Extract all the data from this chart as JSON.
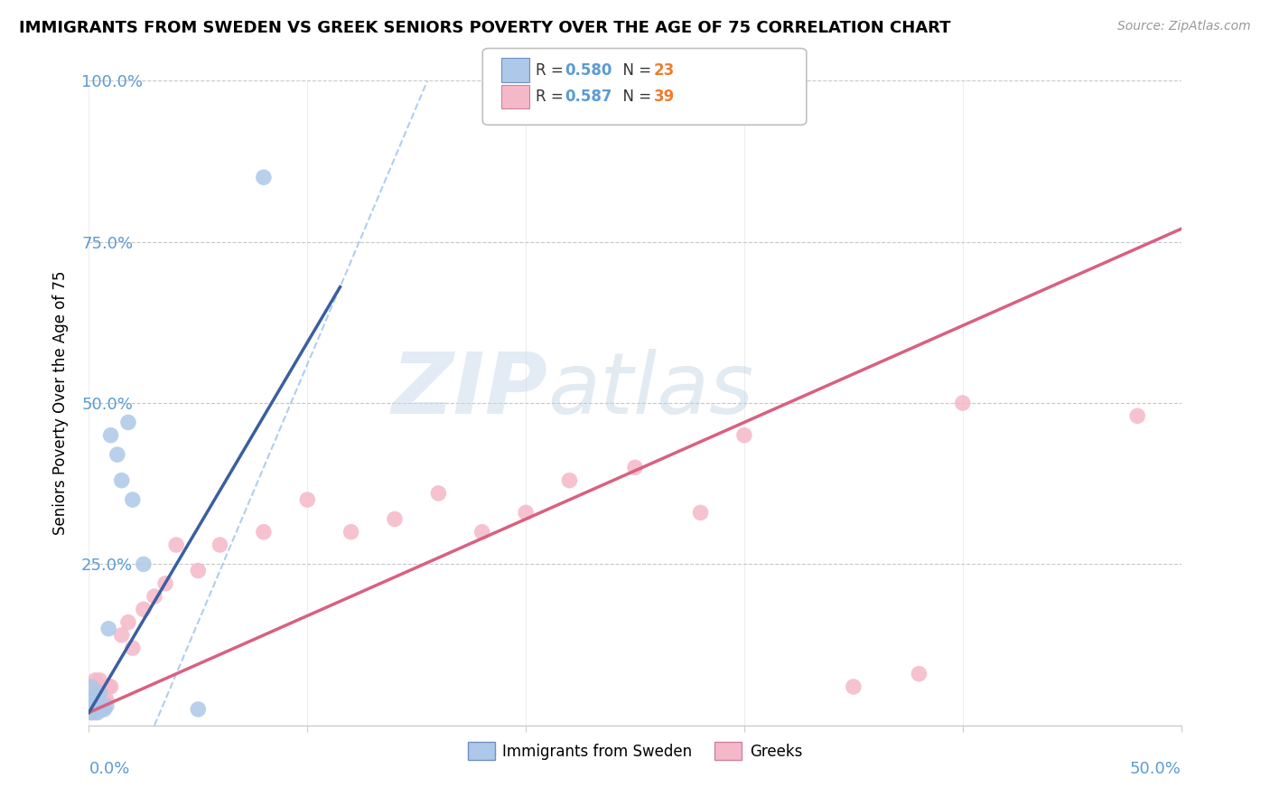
{
  "title": "IMMIGRANTS FROM SWEDEN VS GREEK SENIORS POVERTY OVER THE AGE OF 75 CORRELATION CHART",
  "source": "Source: ZipAtlas.com",
  "ylabel": "Seniors Poverty Over the Age of 75",
  "ytick_labels": [
    "",
    "25.0%",
    "50.0%",
    "75.0%",
    "100.0%"
  ],
  "ytick_vals": [
    0,
    0.25,
    0.5,
    0.75,
    1.0
  ],
  "legend_label1": "Immigrants from Sweden",
  "legend_label2": "Greeks",
  "watermark1": "ZIP",
  "watermark2": "atlas",
  "blue_scatter_color": "#adc8e8",
  "pink_scatter_color": "#f5b8c8",
  "blue_line_color": "#3a5fa0",
  "pink_line_color": "#d96080",
  "dash_line_color": "#a8c8f0",
  "legend_r_color": "#5b9bd5",
  "legend_n_color": "#ed7d31",
  "xlim": [
    0,
    0.5
  ],
  "ylim": [
    0,
    1.0
  ],
  "sweden_x": [
    0.001,
    0.001,
    0.001,
    0.002,
    0.002,
    0.003,
    0.003,
    0.004,
    0.004,
    0.005,
    0.005,
    0.006,
    0.007,
    0.008,
    0.009,
    0.01,
    0.013,
    0.015,
    0.018,
    0.02,
    0.025,
    0.05,
    0.08
  ],
  "sweden_y": [
    0.02,
    0.04,
    0.06,
    0.02,
    0.04,
    0.02,
    0.03,
    0.02,
    0.04,
    0.03,
    0.05,
    0.025,
    0.025,
    0.03,
    0.15,
    0.45,
    0.42,
    0.38,
    0.47,
    0.35,
    0.25,
    0.025,
    0.85
  ],
  "greek_x": [
    0.001,
    0.001,
    0.002,
    0.002,
    0.003,
    0.003,
    0.004,
    0.004,
    0.005,
    0.005,
    0.006,
    0.007,
    0.008,
    0.009,
    0.01,
    0.015,
    0.018,
    0.02,
    0.025,
    0.03,
    0.035,
    0.04,
    0.05,
    0.06,
    0.08,
    0.1,
    0.12,
    0.14,
    0.16,
    0.18,
    0.2,
    0.22,
    0.25,
    0.28,
    0.3,
    0.35,
    0.38,
    0.4,
    0.48
  ],
  "greek_y": [
    0.02,
    0.04,
    0.03,
    0.06,
    0.04,
    0.07,
    0.03,
    0.05,
    0.03,
    0.07,
    0.04,
    0.04,
    0.04,
    0.06,
    0.06,
    0.14,
    0.16,
    0.12,
    0.18,
    0.2,
    0.22,
    0.28,
    0.24,
    0.28,
    0.3,
    0.35,
    0.3,
    0.32,
    0.36,
    0.3,
    0.33,
    0.38,
    0.4,
    0.33,
    0.45,
    0.06,
    0.08,
    0.5,
    0.48
  ],
  "blue_line_x0": 0.0,
  "blue_line_y0": 0.02,
  "blue_line_x1": 0.115,
  "blue_line_y1": 0.68,
  "pink_line_x0": 0.0,
  "pink_line_y0": 0.02,
  "pink_line_x1": 0.5,
  "pink_line_y1": 0.77,
  "dash_line_x0": 0.03,
  "dash_line_y0": 0.0,
  "dash_line_x1": 0.155,
  "dash_line_y1": 1.0
}
